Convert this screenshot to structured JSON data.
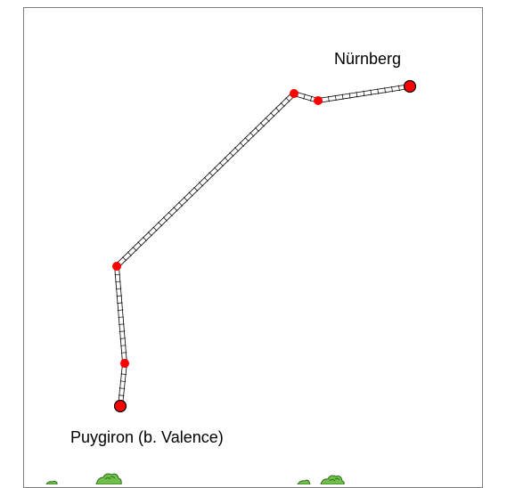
{
  "map": {
    "labels": {
      "end": "Nürnberg",
      "start": "Puygiron (b. Valence)"
    },
    "route": {
      "stops": [
        "start",
        "via",
        "via",
        "via",
        "via",
        "end"
      ]
    },
    "colors": {
      "stop_fill": "#ff0000",
      "stop_stroke": "#000000",
      "track": "#000000",
      "frame": "#7f7f7f",
      "vegetation": "#3f8f2a"
    },
    "icons": [
      "railway-track-line",
      "station-marker",
      "tree-icon"
    ]
  }
}
